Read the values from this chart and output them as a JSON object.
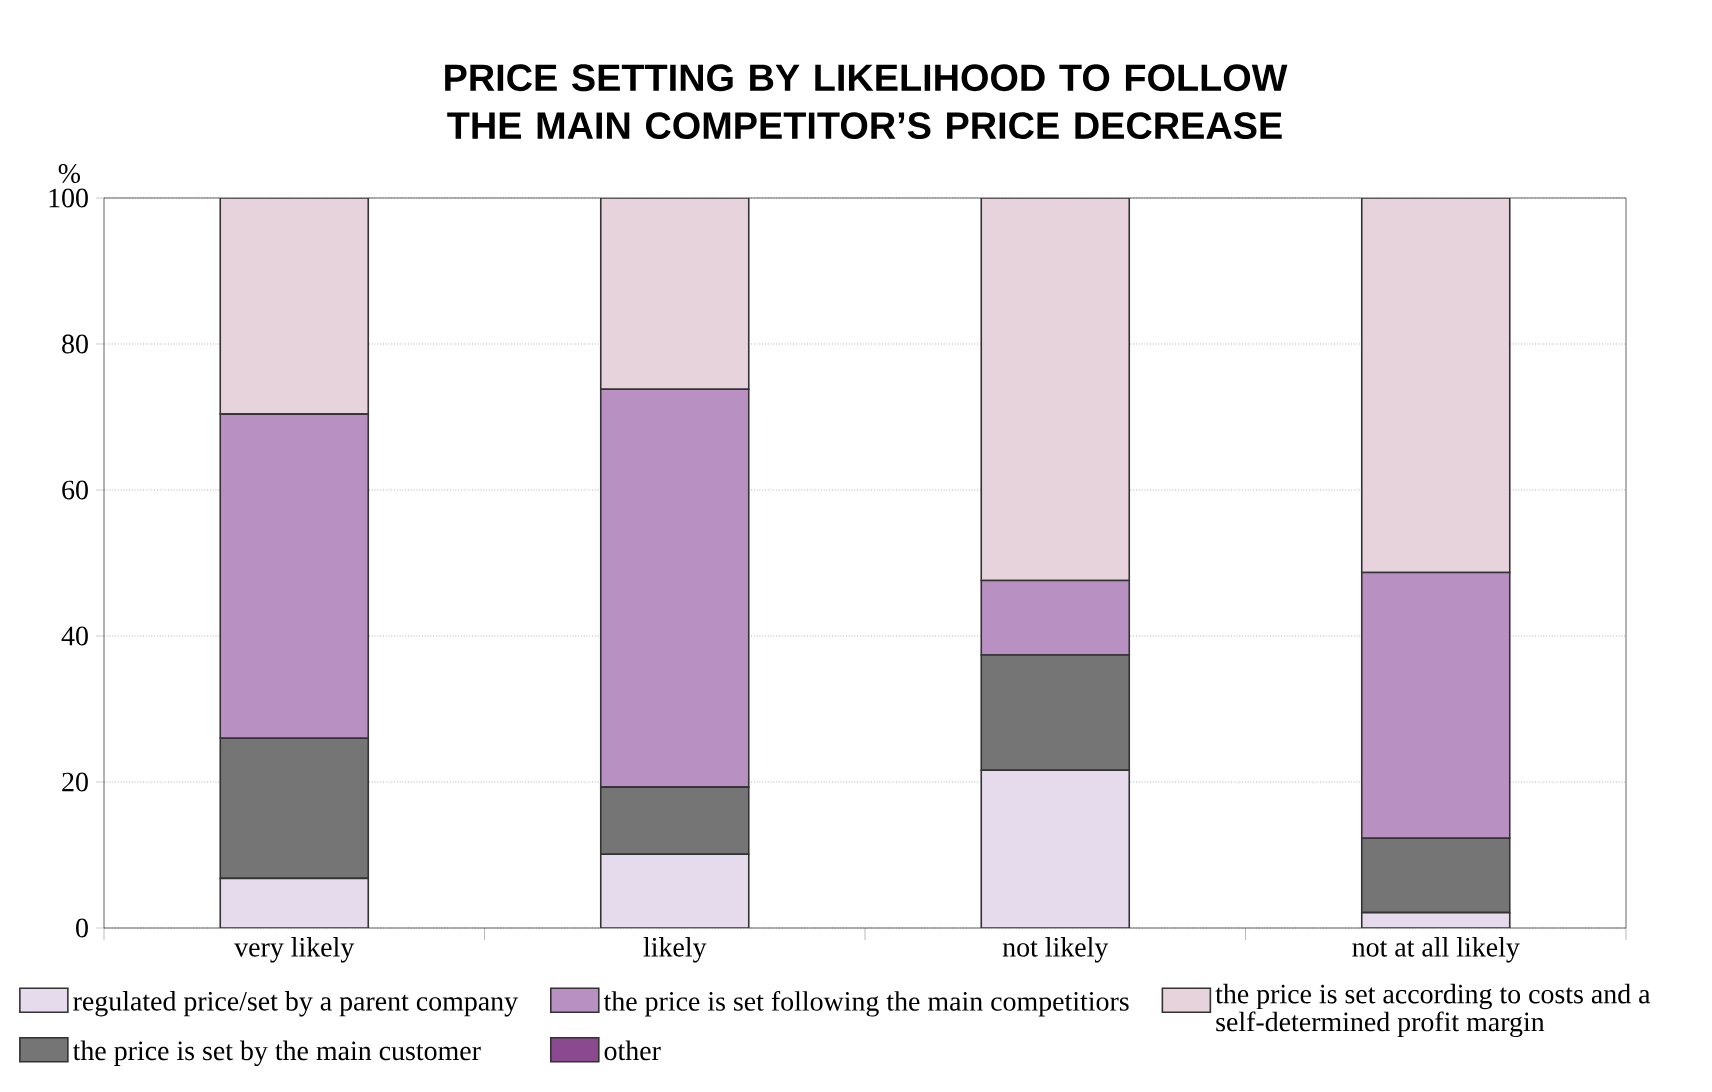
{
  "chart_data": {
    "type": "bar",
    "stacked": true,
    "title": "PRICE SETTING BY LIKELIHOOD TO FOLLOW THE MAIN COMPETITOR’S PRICE DECREASE",
    "ylabel": "%",
    "categories": [
      "very likely",
      "likely",
      "not likely",
      "not at all likely"
    ],
    "series": [
      {
        "name": "regulated price/set by a parent company",
        "color": "#e6dbec",
        "values": [
          6.8,
          10.1,
          21.6,
          2.1
        ]
      },
      {
        "name": "the price is set by the main customer",
        "color": "#747574",
        "values": [
          19.2,
          9.2,
          15.8,
          10.2
        ]
      },
      {
        "name": "the price is set following the main competitiors",
        "color": "#b890c2",
        "values": [
          44.4,
          54.5,
          10.2,
          36.4
        ]
      },
      {
        "name": "other",
        "color": "#8b4a8f",
        "values": [
          0,
          0,
          0,
          0
        ]
      },
      {
        "name": "the price is set according to costs and a self-determined profit margin",
        "color": "#e7d3dc",
        "values": [
          29.6,
          26.2,
          52.4,
          51.3
        ]
      }
    ],
    "ylim": [
      0,
      100
    ],
    "yticks": [
      0,
      20,
      40,
      60,
      80,
      100
    ],
    "grid": "y",
    "legend": "bottom"
  }
}
